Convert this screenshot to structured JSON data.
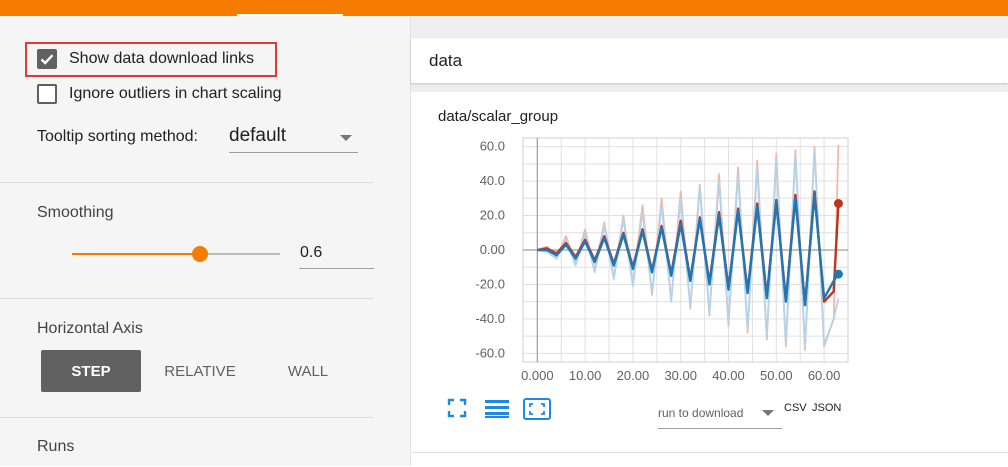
{
  "sidebar": {
    "show_download_links": {
      "label": "Show data download links",
      "checked": true
    },
    "ignore_outliers": {
      "label": "Ignore outliers in chart scaling",
      "checked": false
    },
    "tooltip_sorting": {
      "label": "Tooltip sorting method:",
      "value": "default"
    },
    "smoothing": {
      "title": "Smoothing",
      "value": "0.6",
      "fraction": 0.6
    },
    "horizontal_axis": {
      "title": "Horizontal Axis",
      "options": [
        "STEP",
        "RELATIVE",
        "WALL"
      ],
      "selected": "STEP"
    },
    "runs_title": "Runs"
  },
  "main": {
    "group_name": "data",
    "chart": {
      "title": "data/scalar_group",
      "download_select": "run to download",
      "csv": "CSV",
      "json": "JSON"
    }
  },
  "colors": {
    "accent": "#f57c00",
    "series_red": "#c0341f",
    "series_blue": "#1f77b4"
  },
  "icons": [
    "fullscreen-icon",
    "legend-list-icon",
    "fit-domain-icon",
    "dropdown-arrow-icon",
    "checkmark-icon"
  ],
  "chart_data": {
    "type": "line",
    "title": "data/scalar_group",
    "xlabel": "",
    "ylabel": "",
    "xlim": [
      -3,
      65
    ],
    "ylim": [
      -65,
      65
    ],
    "x_ticks": [
      "0.000",
      "10.00",
      "20.00",
      "30.00",
      "40.00",
      "50.00",
      "60.00"
    ],
    "y_ticks": [
      "60.0",
      "40.0",
      "20.0",
      "0.00",
      "-20.0",
      "-40.0",
      "-60.0"
    ],
    "grid": true,
    "series": [
      {
        "smoothed": true,
        "color": "#c0341f",
        "x": [
          0,
          2,
          4,
          6,
          8,
          10,
          12,
          14,
          16,
          18,
          20,
          22,
          24,
          26,
          28,
          30,
          32,
          34,
          36,
          38,
          40,
          42,
          44,
          46,
          48,
          50,
          52,
          54,
          56,
          58,
          60,
          62,
          63
        ],
        "y": [
          0,
          1,
          -2,
          4,
          -4,
          6,
          -6,
          8,
          -8,
          10,
          -10,
          12,
          -12,
          14,
          -14,
          17,
          -17,
          19,
          -19,
          22,
          -22,
          24,
          -24,
          27,
          -27,
          29,
          -29,
          32,
          -32,
          34,
          -30,
          -24,
          27
        ]
      },
      {
        "smoothed": true,
        "color": "#1f77b4",
        "x": [
          0,
          2,
          4,
          6,
          8,
          10,
          12,
          14,
          16,
          18,
          20,
          22,
          24,
          26,
          28,
          30,
          32,
          34,
          36,
          38,
          40,
          42,
          44,
          46,
          48,
          50,
          52,
          54,
          56,
          58,
          60,
          62,
          63
        ],
        "y": [
          0,
          0,
          -3,
          3,
          -5,
          5,
          -7,
          7,
          -9,
          9,
          -11,
          11,
          -13,
          13,
          -15,
          15,
          -18,
          18,
          -20,
          20,
          -23,
          23,
          -25,
          25,
          -28,
          28,
          -30,
          30,
          -32,
          32,
          -28,
          -18,
          -14
        ]
      },
      {
        "smoothed": false,
        "color": "#f4b6aa",
        "x": [
          0,
          2,
          4,
          6,
          8,
          10,
          12,
          14,
          16,
          18,
          20,
          22,
          24,
          26,
          28,
          30,
          32,
          34,
          36,
          38,
          40,
          42,
          44,
          46,
          48,
          50,
          52,
          54,
          56,
          58,
          60,
          62,
          63
        ],
        "y": [
          0,
          2,
          -4,
          8,
          -8,
          12,
          -12,
          16,
          -16,
          20,
          -20,
          26,
          -26,
          30,
          -30,
          34,
          -34,
          38,
          -38,
          44,
          -44,
          48,
          -48,
          52,
          -52,
          56,
          -56,
          58,
          -58,
          60,
          -56,
          -40,
          61
        ]
      },
      {
        "smoothed": false,
        "color": "#b3d4ea",
        "x": [
          0,
          2,
          4,
          6,
          8,
          10,
          12,
          14,
          16,
          18,
          20,
          22,
          24,
          26,
          28,
          30,
          32,
          34,
          36,
          38,
          40,
          42,
          44,
          46,
          48,
          50,
          52,
          54,
          56,
          58,
          60,
          62,
          63
        ],
        "y": [
          0,
          -1,
          -5,
          6,
          -9,
          10,
          -13,
          14,
          -17,
          18,
          -21,
          22,
          -25,
          26,
          -29,
          30,
          -33,
          36,
          -37,
          40,
          -42,
          44,
          -46,
          48,
          -50,
          52,
          -54,
          55,
          -56,
          58,
          -55,
          -40,
          -28
        ]
      }
    ]
  }
}
